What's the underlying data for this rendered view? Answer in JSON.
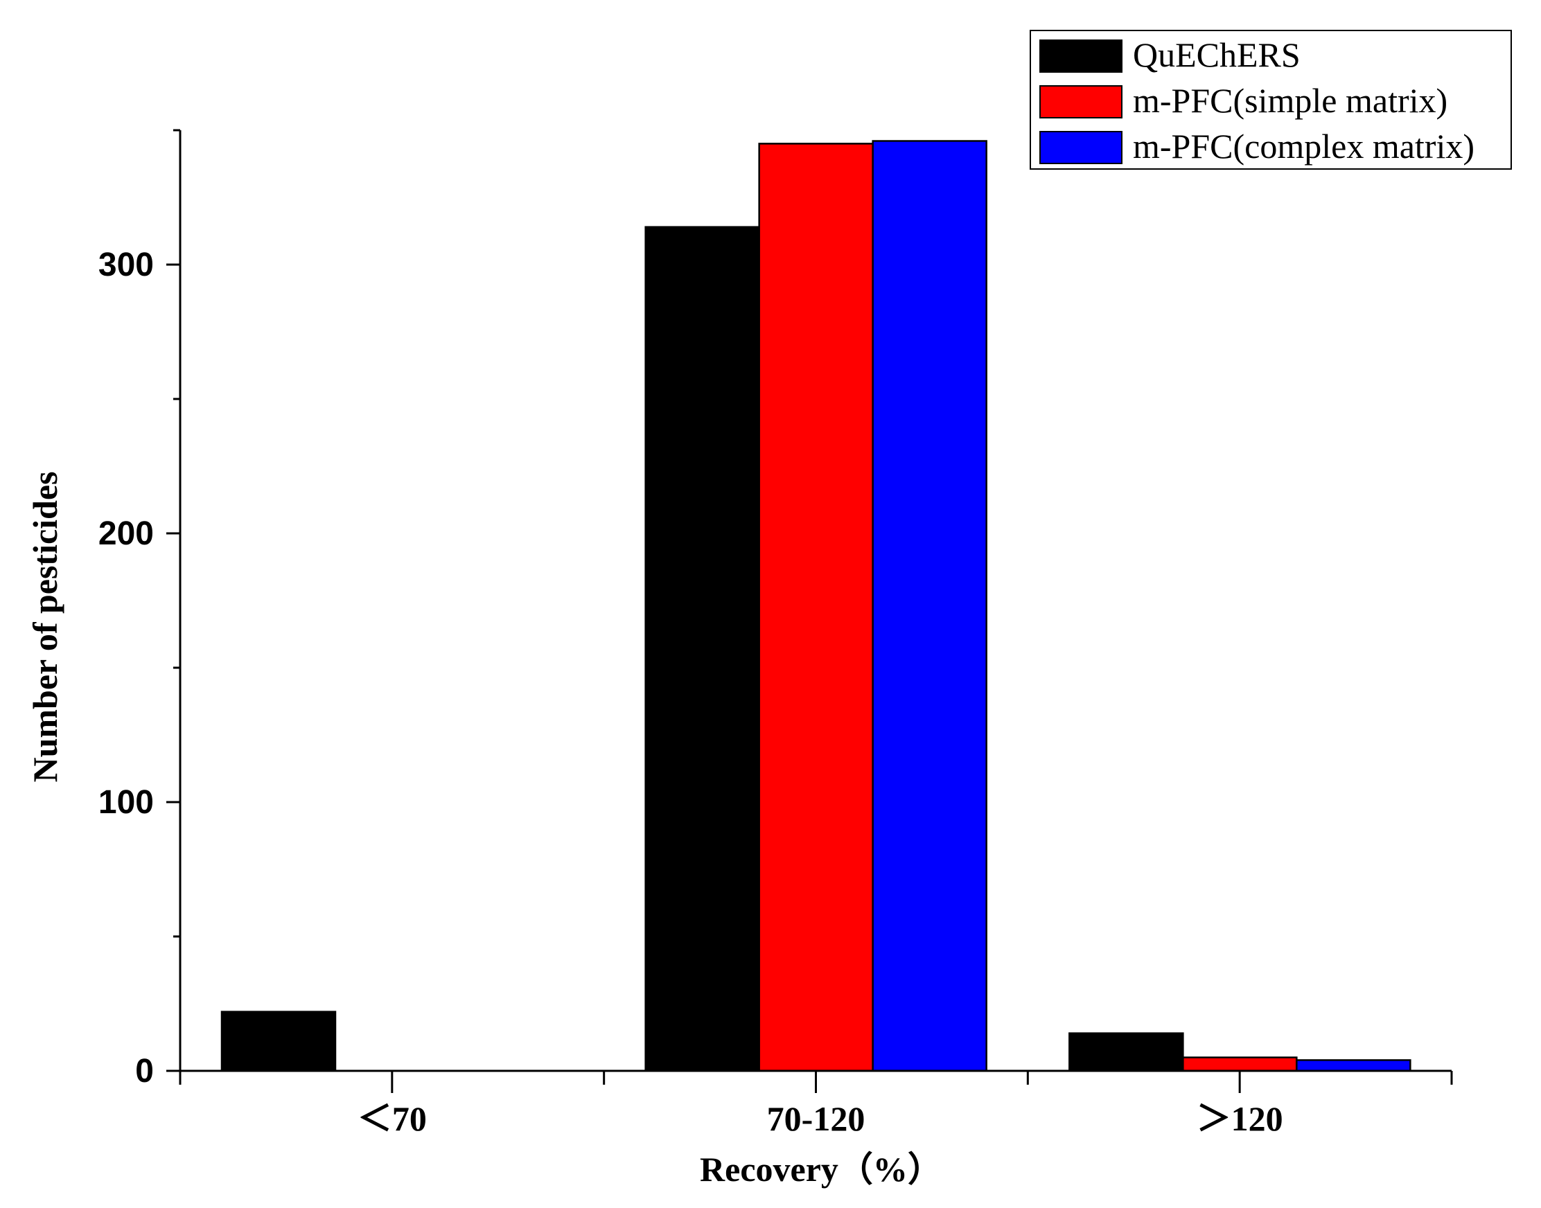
{
  "chart_data": {
    "type": "bar",
    "categories": [
      "＜70",
      "70-120",
      "＞120"
    ],
    "series": [
      {
        "name": "QuEChERS",
        "color": "#000000",
        "values": [
          22,
          314,
          14
        ]
      },
      {
        "name": "m-PFC(simple matrix)",
        "color": "#ff0000",
        "values": [
          0,
          345,
          5
        ]
      },
      {
        "name": "m-PFC(complex matrix)",
        "color": "#0000ff",
        "values": [
          0,
          346,
          4
        ]
      }
    ],
    "xlabel": "Recovery（%）",
    "ylabel": "Number of pesticides",
    "ylim": [
      0,
      350
    ],
    "yticks": [
      0,
      100,
      200,
      300
    ],
    "grid": false,
    "legend_position": "top-right"
  }
}
